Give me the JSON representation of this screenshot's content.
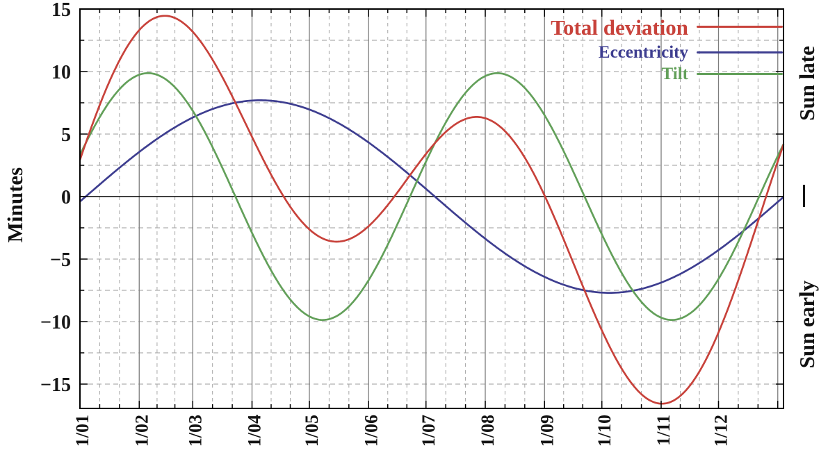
{
  "chart_data": {
    "type": "line",
    "title": "",
    "ylabel": "Minutes",
    "right_axis_labels": {
      "top": "Sun late",
      "bottom": "Sun early"
    },
    "x_tick_labels": [
      "1/01",
      "1/02",
      "1/03",
      "1/04",
      "1/05",
      "1/06",
      "1/07",
      "1/08",
      "1/09",
      "1/10",
      "1/11",
      "1/12"
    ],
    "x_tick_days": [
      0,
      31,
      59,
      90,
      120,
      151,
      181,
      212,
      243,
      273,
      304,
      334
    ],
    "month_starts": [
      0,
      31,
      59,
      90,
      120,
      151,
      181,
      212,
      243,
      273,
      304,
      334,
      365
    ],
    "x_range_days": [
      0,
      368
    ],
    "ylim": [
      -16.9,
      15
    ],
    "y_ticks": [
      15,
      10,
      5,
      0,
      -5,
      -10,
      -15
    ],
    "y_minor_step": 2.5,
    "grid": true,
    "legend_position": "top-right",
    "series": [
      {
        "name": "Total deviation",
        "color": "#c8423b",
        "sum_of": [
          "Eccentricity",
          "Tilt"
        ],
        "sample_days": [
          0,
          31,
          59,
          90,
          120,
          151,
          181,
          212,
          243,
          273,
          304,
          334,
          365
        ],
        "sample_minutes": [
          2.9,
          13.3,
          13.2,
          4.8,
          -2.6,
          -2.5,
          3.4,
          6.3,
          0.1,
          -10.8,
          -16.6,
          -10.9,
          2.9
        ]
      },
      {
        "name": "Eccentricity",
        "color": "#3e3e90",
        "model": {
          "amplitude": 7.7,
          "period_days": 365.25,
          "zero_day": 3
        },
        "sample_days": [
          0,
          31,
          59,
          90,
          120,
          151,
          181,
          212,
          243,
          273,
          304,
          334,
          365
        ],
        "sample_minutes": [
          -0.4,
          3.6,
          6.3,
          7.7,
          6.9,
          4.3,
          0.6,
          -3.4,
          -6.4,
          -7.7,
          -6.9,
          -4.3,
          -0.4
        ]
      },
      {
        "name": "Tilt",
        "color": "#63a05a",
        "model": {
          "amplitude": 9.87,
          "period_days": 182.625,
          "zero_day": -10
        },
        "sample_days": [
          0,
          31,
          59,
          90,
          120,
          151,
          181,
          212,
          243,
          273,
          304,
          334,
          365
        ],
        "sample_minutes": [
          3.3,
          9.7,
          6.8,
          -2.9,
          -9.6,
          -6.8,
          2.8,
          9.7,
          6.5,
          -3.1,
          -9.7,
          -6.7,
          3.3
        ]
      }
    ]
  }
}
